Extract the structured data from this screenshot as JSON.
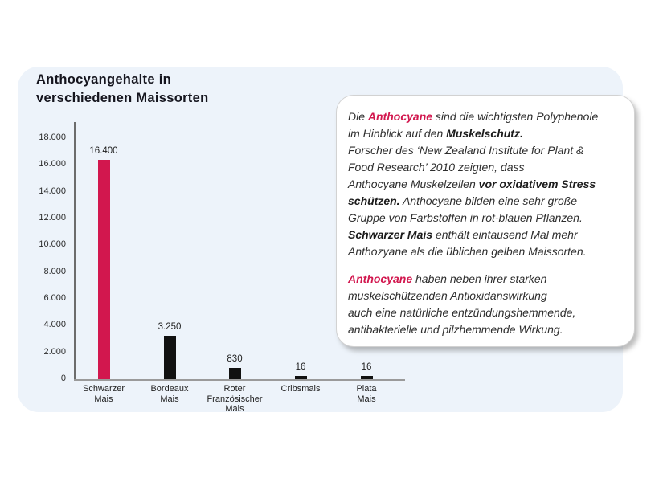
{
  "title": "Anthocyangehalte in\nverschiedenen Maissorten",
  "chart_data": {
    "type": "bar",
    "title": "Anthocyangehalte in verschiedenen Maissorten",
    "xlabel": "",
    "ylabel": "",
    "categories": [
      "Schwarzer\nMais",
      "Bordeaux\nMais",
      "Roter\nFranzösischer\nMais",
      "Cribsmais",
      "Plata\nMais"
    ],
    "values": [
      16400,
      3250,
      830,
      16,
      16
    ],
    "value_labels": [
      "16.400",
      "3.250",
      "830",
      "16",
      "16"
    ],
    "bar_colors": [
      "#D2174E",
      "#111111",
      "#111111",
      "#111111",
      "#111111"
    ],
    "ylim": [
      0,
      18000
    ],
    "yticks": [
      {
        "v": 0,
        "label": "0"
      },
      {
        "v": 2000,
        "label": "2.000"
      },
      {
        "v": 4000,
        "label": "4.000"
      },
      {
        "v": 6000,
        "label": "6.000"
      },
      {
        "v": 8000,
        "label": "8.000"
      },
      {
        "v": 10000,
        "label": "10.000"
      },
      {
        "v": 12000,
        "label": "12.000"
      },
      {
        "v": 14000,
        "label": "14.000"
      },
      {
        "v": 16000,
        "label": "16.000"
      },
      {
        "v": 18000,
        "label": "18.000"
      }
    ],
    "grid": false,
    "legend": false
  },
  "infobox": {
    "paragraphs": [
      {
        "lines": [
          [
            {
              "t": "Die "
            },
            {
              "t": "Anthocyane",
              "b": true,
              "r": true
            },
            {
              "t": " sind die wichtigsten Polyphenole"
            }
          ],
          [
            {
              "t": "im Hinblick auf den "
            },
            {
              "t": "Muskelschutz.",
              "b": true
            }
          ],
          [
            {
              "t": "Forscher des ‘New Zealand Institute for Plant &"
            }
          ],
          [
            {
              "t": "Food Research’ 2010 zeigten, dass"
            }
          ],
          [
            {
              "t": "Anthocyane Muskelzellen "
            },
            {
              "t": "vor oxidativem Stress",
              "b": true
            }
          ],
          [
            {
              "t": "schützen.",
              "b": true
            },
            {
              "t": "  Anthocyane bilden eine sehr große"
            }
          ],
          [
            {
              "t": "Gruppe von Farbstoffen in rot-blauen Pflanzen."
            }
          ],
          [
            {
              "t": "Schwarzer Mais",
              "b": true
            },
            {
              "t": "  enthält eintausend Mal mehr"
            }
          ],
          [
            {
              "t": "Anthozyane als die üblichen gelben Maissorten."
            }
          ]
        ]
      },
      {
        "lines": [
          [
            {
              "t": "Anthocyane",
              "b": true,
              "r": true
            },
            {
              "t": " haben neben ihrer starken"
            }
          ],
          [
            {
              "t": "muskelschützenden Antioxidanswirkung"
            }
          ],
          [
            {
              "t": "auch eine natürliche entzündungshemmende,"
            }
          ],
          [
            {
              "t": "antibakterielle und pilzhemmende Wirkung."
            }
          ]
        ]
      }
    ]
  },
  "colors": {
    "accent_red": "#D2174E",
    "bar_black": "#111111",
    "panel_background": "#EDF3FA",
    "page_background": "#FFFFFF"
  }
}
